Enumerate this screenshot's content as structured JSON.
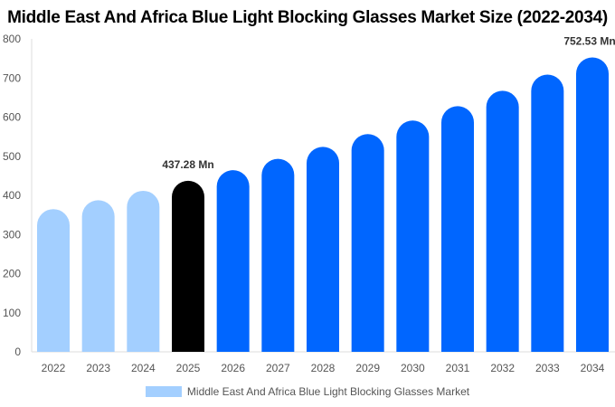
{
  "chart_data": {
    "type": "bar",
    "title": "Middle East And Africa Blue Light Blocking Glasses Market Size (2022-2034)",
    "categories": [
      "2022",
      "2023",
      "2024",
      "2025",
      "2026",
      "2027",
      "2028",
      "2029",
      "2030",
      "2031",
      "2032",
      "2033",
      "2034"
    ],
    "series": [
      {
        "name": "Middle East And Africa Blue Light Blocking Glasses Market",
        "values": [
          364.9,
          387.6,
          411.7,
          437.28,
          464.5,
          493.4,
          524.1,
          556.7,
          591.3,
          628.1,
          667.2,
          708.7,
          752.53
        ]
      }
    ],
    "data_labels": {
      "3": "437.28 Mn",
      "12": "752.53 Mn"
    },
    "ylim": [
      0,
      800
    ],
    "yticks": [
      0,
      100,
      200,
      300,
      400,
      500,
      600,
      700,
      800
    ],
    "xlabel": "",
    "ylabel": "",
    "grid": false,
    "legend_position": "bottom",
    "colors": {
      "historical": "#a3cfff",
      "current": "#000000",
      "forecast": "#0066ff"
    }
  }
}
